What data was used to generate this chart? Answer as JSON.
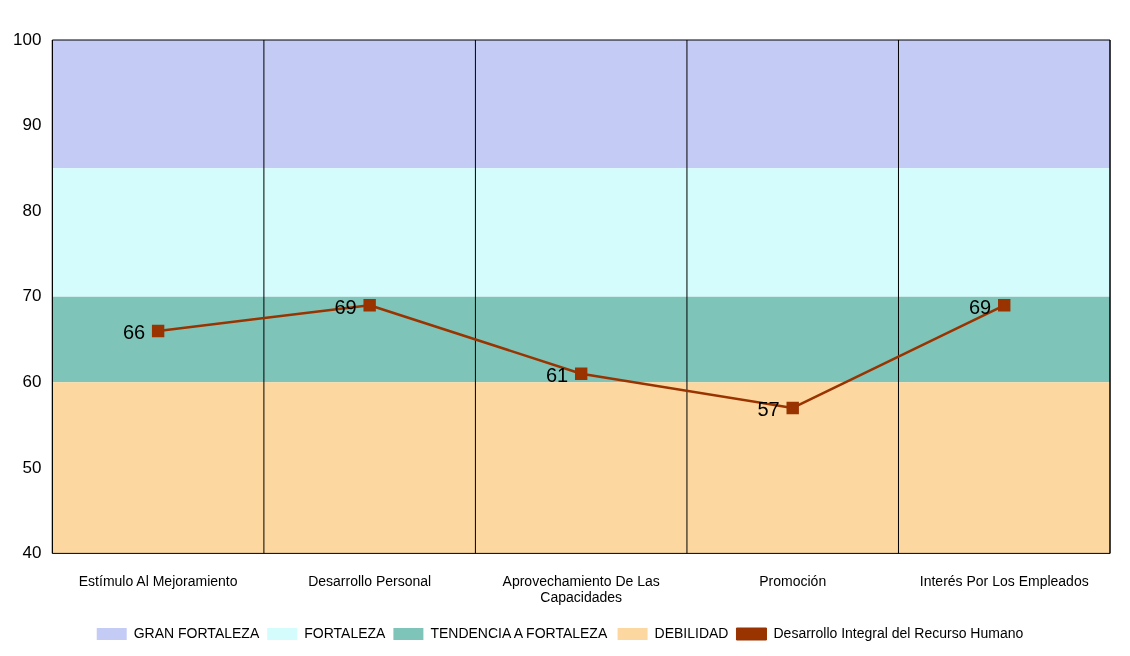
{
  "chart_data": {
    "type": "line",
    "categories": [
      "Estímulo Al Mejoramiento",
      "Desarrollo Personal",
      [
        "Aprovechamiento De Las",
        "Capacidades"
      ],
      "Promoción",
      "Interés Por Los Empleados"
    ],
    "series": [
      {
        "name": "Desarrollo Integral del Recurso Humano",
        "color": "#993300",
        "values": [
          66,
          69,
          61,
          57,
          69
        ]
      }
    ],
    "bands": [
      {
        "axis": "y",
        "from": 85,
        "to": 100,
        "label": "GRAN FORTALEZA",
        "color": "#c4ccf6"
      },
      {
        "axis": "y",
        "from": 70,
        "to": 85,
        "label": "FORTALEZA",
        "color": "#d4fcfc"
      },
      {
        "axis": "y",
        "from": 60,
        "to": 70,
        "label": "TENDENCIA A FORTALEZA",
        "color": "#7fc4b8"
      },
      {
        "axis": "y",
        "from": 40,
        "to": 60,
        "label": "DEBILIDAD",
        "color": "#fcd8a0"
      }
    ],
    "ylim": [
      40,
      100
    ],
    "yticks": [
      40,
      50,
      60,
      70,
      80,
      90,
      100
    ],
    "grid": "x",
    "legend": "bottom",
    "marker": "square",
    "line_style": "solid",
    "data_labels": true
  }
}
